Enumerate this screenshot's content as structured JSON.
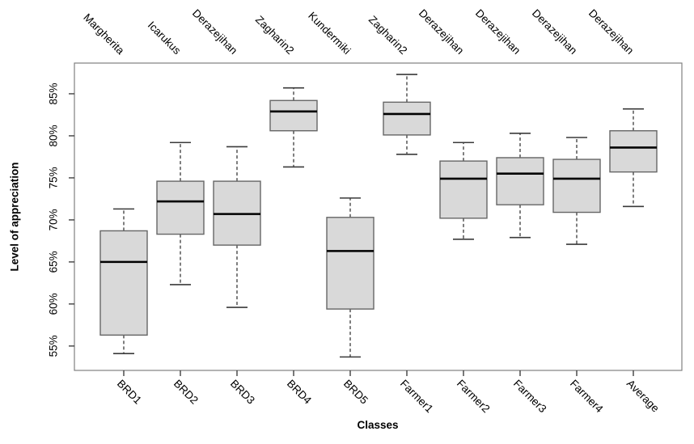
{
  "chart_data": {
    "type": "boxplot",
    "title": "",
    "xlabel": "Classes",
    "ylabel": "Level of appreciation",
    "categories": [
      "BRD1",
      "BRD2",
      "BRD3",
      "BRD4",
      "BRD5",
      "Farmer1",
      "Farmer2",
      "Farmer3",
      "Farmer4",
      "Average"
    ],
    "top_labels": [
      "Margherita",
      "Icarukus",
      "Derazejihan",
      "Zagharin2",
      "Kundermiki",
      "Zagharin2",
      "Derazejihan",
      "Derazejihan",
      "Derazejihan",
      "Derazejihan"
    ],
    "y_ticks": [
      55,
      60,
      65,
      70,
      75,
      80,
      85
    ],
    "y_tick_suffix": "%",
    "ylim": [
      52.1,
      88.65
    ],
    "grid": false,
    "legend": "none",
    "series": [
      {
        "category": "BRD1",
        "variety": "Margherita",
        "low": 54.1,
        "q1": 56.3,
        "median": 65.0,
        "q3": 68.7,
        "high": 71.3
      },
      {
        "category": "BRD2",
        "variety": "Icarukus",
        "low": 62.3,
        "q1": 68.3,
        "median": 72.2,
        "q3": 74.6,
        "high": 79.2
      },
      {
        "category": "BRD3",
        "variety": "Derazejihan",
        "low": 59.6,
        "q1": 67.0,
        "median": 70.7,
        "q3": 74.6,
        "high": 78.7
      },
      {
        "category": "BRD4",
        "variety": "Zagharin2",
        "low": 76.3,
        "q1": 80.6,
        "median": 82.9,
        "q3": 84.2,
        "high": 85.7
      },
      {
        "category": "BRD5",
        "variety": "Kundermiki",
        "low": 53.7,
        "q1": 59.4,
        "median": 66.3,
        "q3": 70.3,
        "high": 72.6
      },
      {
        "category": "Farmer1",
        "variety": "Zagharin2",
        "low": 77.8,
        "q1": 80.1,
        "median": 82.6,
        "q3": 84.0,
        "high": 87.3
      },
      {
        "category": "Farmer2",
        "variety": "Derazejihan",
        "low": 67.7,
        "q1": 70.2,
        "median": 74.9,
        "q3": 77.0,
        "high": 79.2
      },
      {
        "category": "Farmer3",
        "variety": "Derazejihan",
        "low": 67.9,
        "q1": 71.8,
        "median": 75.5,
        "q3": 77.4,
        "high": 80.3
      },
      {
        "category": "Farmer4",
        "variety": "Derazejihan",
        "low": 67.1,
        "q1": 70.9,
        "median": 74.9,
        "q3": 77.2,
        "high": 79.8
      },
      {
        "category": "Average",
        "variety": "Derazejihan",
        "low": 71.6,
        "q1": 75.7,
        "median": 78.6,
        "q3": 80.6,
        "high": 83.2
      }
    ],
    "colors": {
      "box_fill": "#d9d9d9",
      "box_border": "#666666",
      "median": "#000000",
      "whisker": "#3a3a3a",
      "panel_border": "#808080",
      "tick": "#404040",
      "text": "#000000",
      "background": "#ffffff"
    }
  }
}
